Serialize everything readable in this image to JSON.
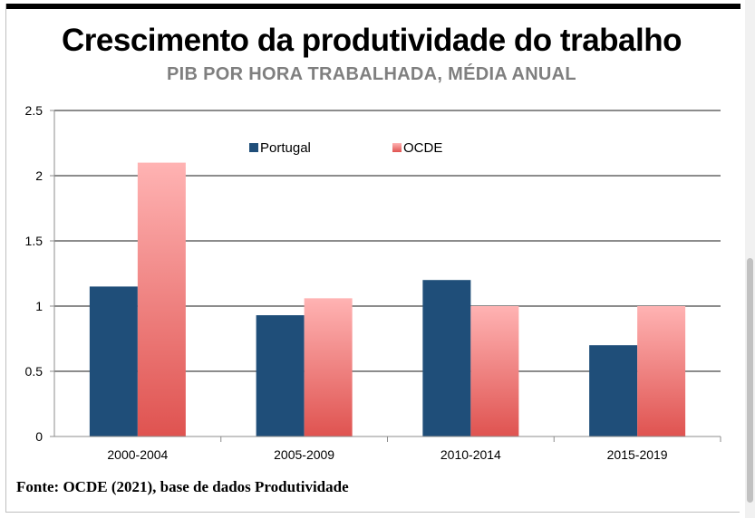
{
  "header": {
    "title": "Crescimento da produtividade do trabalho",
    "subtitle": "PIB POR HORA TRABALHADA, MÉDIA ANUAL"
  },
  "source": "Fonte: OCDE (2021), base de dados Produtividade",
  "chart_data": {
    "type": "bar",
    "title": "Crescimento da produtividade do trabalho",
    "subtitle": "PIB POR HORA TRABALHADA, MÉDIA ANUAL",
    "xlabel": "",
    "ylabel": "",
    "categories": [
      "2000-2004",
      "2005-2009",
      "2010-2014",
      "2015-2019"
    ],
    "series": [
      {
        "name": "Portugal",
        "values": [
          1.15,
          0.93,
          1.2,
          0.7
        ],
        "color": "#1f4e79"
      },
      {
        "name": "OCDE",
        "values": [
          2.1,
          1.06,
          1.0,
          1.0
        ],
        "color": "#f08080"
      }
    ],
    "ylim": [
      0,
      2.5
    ],
    "yticks": [
      "0",
      "0.5",
      "1",
      "1.5",
      "2",
      "2.5"
    ],
    "ytick_values": [
      0,
      0.5,
      1,
      1.5,
      2,
      2.5
    ],
    "grid": true,
    "legend_position": "top-center"
  }
}
